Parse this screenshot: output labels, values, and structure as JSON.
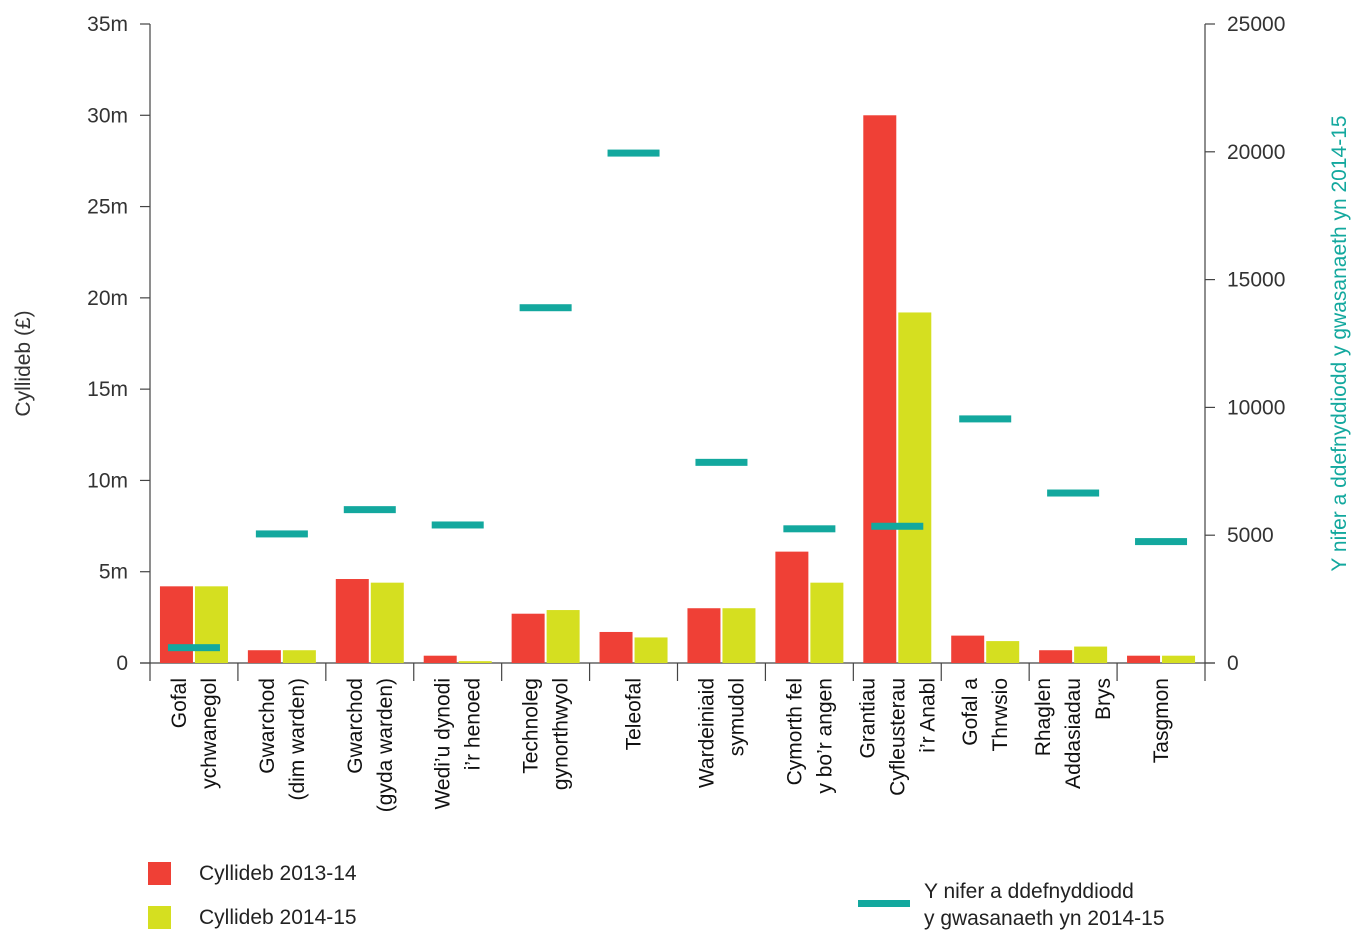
{
  "chart_data": {
    "type": "bar",
    "categories": [
      [
        "Gofal",
        "ychwanegol"
      ],
      [
        "Gwarchod",
        "(dim warden)"
      ],
      [
        "Gwarchod",
        "(gyda warden)"
      ],
      [
        "Wedi’u dynodi",
        "i’r henoed"
      ],
      [
        "Technoleg",
        "gynorthwyol"
      ],
      [
        "Teleofal"
      ],
      [
        "Wardeiniaid",
        "symudol"
      ],
      [
        "Cymorth fel",
        "y bo’r angen"
      ],
      [
        "Grantiau",
        "Cyfleusterau",
        "i’r Anabl"
      ],
      [
        "Gofal a",
        "Thrwsio"
      ],
      [
        "Rhaglen",
        "Addasiadau",
        "Brys"
      ],
      [
        "Tasgmon"
      ]
    ],
    "series": [
      {
        "name": "Cyllideb 2013-14",
        "axis": "left",
        "color": "#ef4036",
        "values": [
          4.2,
          0.7,
          4.6,
          0.4,
          2.7,
          1.7,
          3.0,
          6.1,
          30.0,
          1.5,
          0.7,
          0.4
        ]
      },
      {
        "name": "Cyllideb 2014-15",
        "axis": "left",
        "color": "#d5df20",
        "values": [
          4.2,
          0.7,
          4.4,
          0.1,
          2.9,
          1.4,
          3.0,
          4.4,
          19.2,
          1.2,
          0.9,
          0.4
        ]
      },
      {
        "name_lines": [
          "Y nifer a ddefnyddiodd",
          "y gwasanaeth yn 2014-15"
        ],
        "axis": "right",
        "color": "#13a89e",
        "marker": "dash",
        "values": [
          600,
          5050,
          6000,
          5400,
          13900,
          19950,
          7850,
          5250,
          5350,
          9550,
          6650,
          4750
        ]
      }
    ],
    "y_left": {
      "label": "Cyllideb (£)",
      "ylim": [
        0,
        35
      ],
      "ticks": [
        0,
        5,
        10,
        15,
        20,
        25,
        30,
        35
      ],
      "tick_labels": [
        "0",
        "5m",
        "10m",
        "15m",
        "20m",
        "25m",
        "30m",
        "35m"
      ]
    },
    "y_right": {
      "label": "Y nifer a ddefnyddiodd y gwasanaeth yn 2014-15",
      "ylim": [
        0,
        25000
      ],
      "ticks": [
        0,
        5000,
        10000,
        15000,
        20000,
        25000
      ],
      "tick_labels": [
        "0",
        "5000",
        "10000",
        "15000",
        "20000",
        "25000"
      ],
      "color": "#13a89e"
    },
    "grid": false,
    "legend": "bottom"
  }
}
